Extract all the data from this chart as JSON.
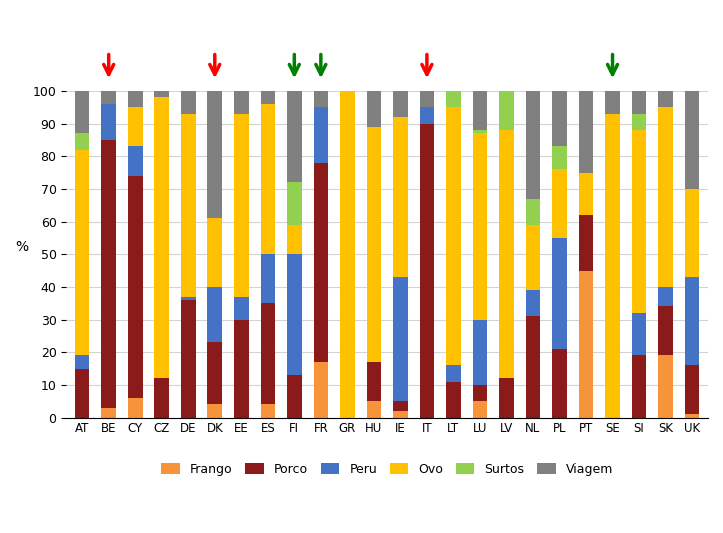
{
  "countries": [
    "AT",
    "BE",
    "CY",
    "CZ",
    "DE",
    "DK",
    "EE",
    "ES",
    "FI",
    "FR",
    "GR",
    "HU",
    "IE",
    "IT",
    "LT",
    "LU",
    "LV",
    "NL",
    "PL",
    "PT",
    "SE",
    "SI",
    "SK",
    "UK"
  ],
  "series": {
    "Frango": [
      0,
      3,
      6,
      0,
      0,
      4,
      0,
      4,
      0,
      17,
      0,
      5,
      2,
      0,
      0,
      5,
      0,
      0,
      0,
      45,
      0,
      0,
      19,
      1
    ],
    "Porco": [
      15,
      82,
      68,
      12,
      36,
      19,
      30,
      31,
      13,
      61,
      0,
      12,
      3,
      90,
      11,
      5,
      12,
      31,
      21,
      17,
      0,
      19,
      15,
      15
    ],
    "Peru": [
      4,
      11,
      9,
      0,
      1,
      17,
      7,
      15,
      37,
      17,
      0,
      0,
      38,
      5,
      5,
      20,
      0,
      8,
      34,
      0,
      0,
      13,
      6,
      27
    ],
    "Ovo": [
      63,
      0,
      12,
      86,
      56,
      21,
      56,
      46,
      9,
      0,
      100,
      72,
      49,
      0,
      79,
      57,
      76,
      20,
      21,
      13,
      93,
      56,
      55,
      27
    ],
    "Surtos": [
      5,
      0,
      0,
      0,
      0,
      0,
      0,
      0,
      13,
      0,
      0,
      0,
      0,
      0,
      5,
      1,
      12,
      8,
      7,
      0,
      0,
      5,
      0,
      0
    ],
    "Viagem": [
      13,
      4,
      5,
      2,
      7,
      39,
      7,
      4,
      28,
      5,
      0,
      11,
      8,
      5,
      0,
      12,
      0,
      33,
      17,
      25,
      7,
      7,
      5,
      30
    ]
  },
  "colors": {
    "Frango": "#f7943a",
    "Porco": "#8b1a1a",
    "Peru": "#4472c4",
    "Ovo": "#ffc000",
    "Surtos": "#92d050",
    "Viagem": "#808080"
  },
  "arrows": {
    "BE": "red",
    "DK": "red",
    "FR": "green",
    "FI": "green",
    "IT": "red",
    "SE": "green"
  },
  "ylabel": "%",
  "ylim": [
    0,
    100
  ],
  "yticks": [
    0,
    10,
    20,
    30,
    40,
    50,
    60,
    70,
    80,
    90,
    100
  ],
  "legend_order": [
    "Frango",
    "Porco",
    "Peru",
    "Ovo",
    "Surtos",
    "Viagem"
  ]
}
